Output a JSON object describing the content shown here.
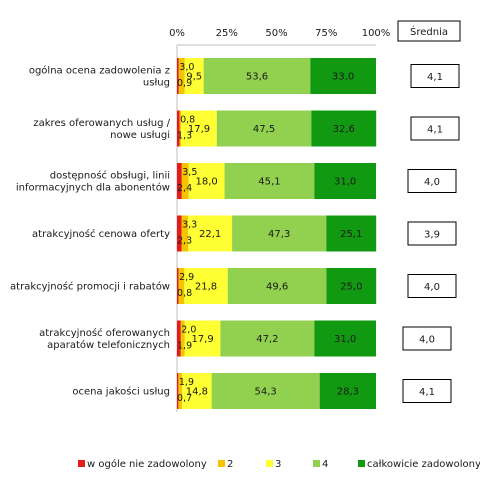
{
  "chart_data": {
    "type": "bar",
    "orientation": "horizontal",
    "stacked": "percent",
    "x_ticks": [
      "0%",
      "25%",
      "50%",
      "75%",
      "100%"
    ],
    "xlim": [
      0,
      100
    ],
    "categories": [
      [
        "ogólna ocena zadowolenia z",
        "usług"
      ],
      [
        "zakres oferowanych usług /",
        "nowe usługi"
      ],
      [
        "dostępność obsługi, linii",
        "informacyjnych dla abonentów"
      ],
      [
        "atrakcyjność cenowa oferty"
      ],
      [
        "atrakcyjność promocji i rabatów"
      ],
      [
        "atrakcyjność oferowanych",
        "aparatów telefonicznych"
      ],
      [
        "ocena jakości usług"
      ]
    ],
    "series": [
      {
        "name": "w ogóle nie zadowolony",
        "color": "#e31b1b",
        "values": [
          0.9,
          1.3,
          2.4,
          2.3,
          0.8,
          1.9,
          0.7
        ],
        "labels": [
          "0,9",
          "1,3",
          "2,4",
          "2,3",
          "0,8",
          "1,9",
          "0,7"
        ]
      },
      {
        "name": "2",
        "color": "#f5c400",
        "values": [
          3.0,
          0.8,
          3.5,
          3.3,
          2.9,
          2.0,
          1.9
        ],
        "labels": [
          "3,0",
          "0,8",
          "3,5",
          "3,3",
          "2,9",
          "2,0",
          "1,9"
        ]
      },
      {
        "name": "3",
        "color": "#ffff33",
        "values": [
          9.5,
          17.9,
          18.0,
          22.1,
          21.8,
          17.9,
          14.8
        ],
        "labels": [
          "9,5",
          "17,9",
          "18,0",
          "22,1",
          "21,8",
          "17,9",
          "14,8"
        ]
      },
      {
        "name": "4",
        "color": "#92d050",
        "values": [
          53.6,
          47.5,
          45.1,
          47.3,
          49.6,
          47.2,
          54.3
        ],
        "labels": [
          "53,6",
          "47,5",
          "45,1",
          "47,3",
          "49,6",
          "47,2",
          "54,3"
        ]
      },
      {
        "name": "całkowicie zadowolony",
        "color": "#119a11",
        "values": [
          33.0,
          32.6,
          31.0,
          25.1,
          25.0,
          31.0,
          28.3
        ],
        "labels": [
          "33,0",
          "32,6",
          "31,0",
          "25,1",
          "25,0",
          "31,0",
          "28,3"
        ]
      }
    ],
    "average_header": "Średnia",
    "averages": [
      "4,1",
      "4,1",
      "4,0",
      "3,9",
      "4,0",
      "4,0",
      "4,1"
    ],
    "legend_position": "bottom",
    "grid": false
  }
}
